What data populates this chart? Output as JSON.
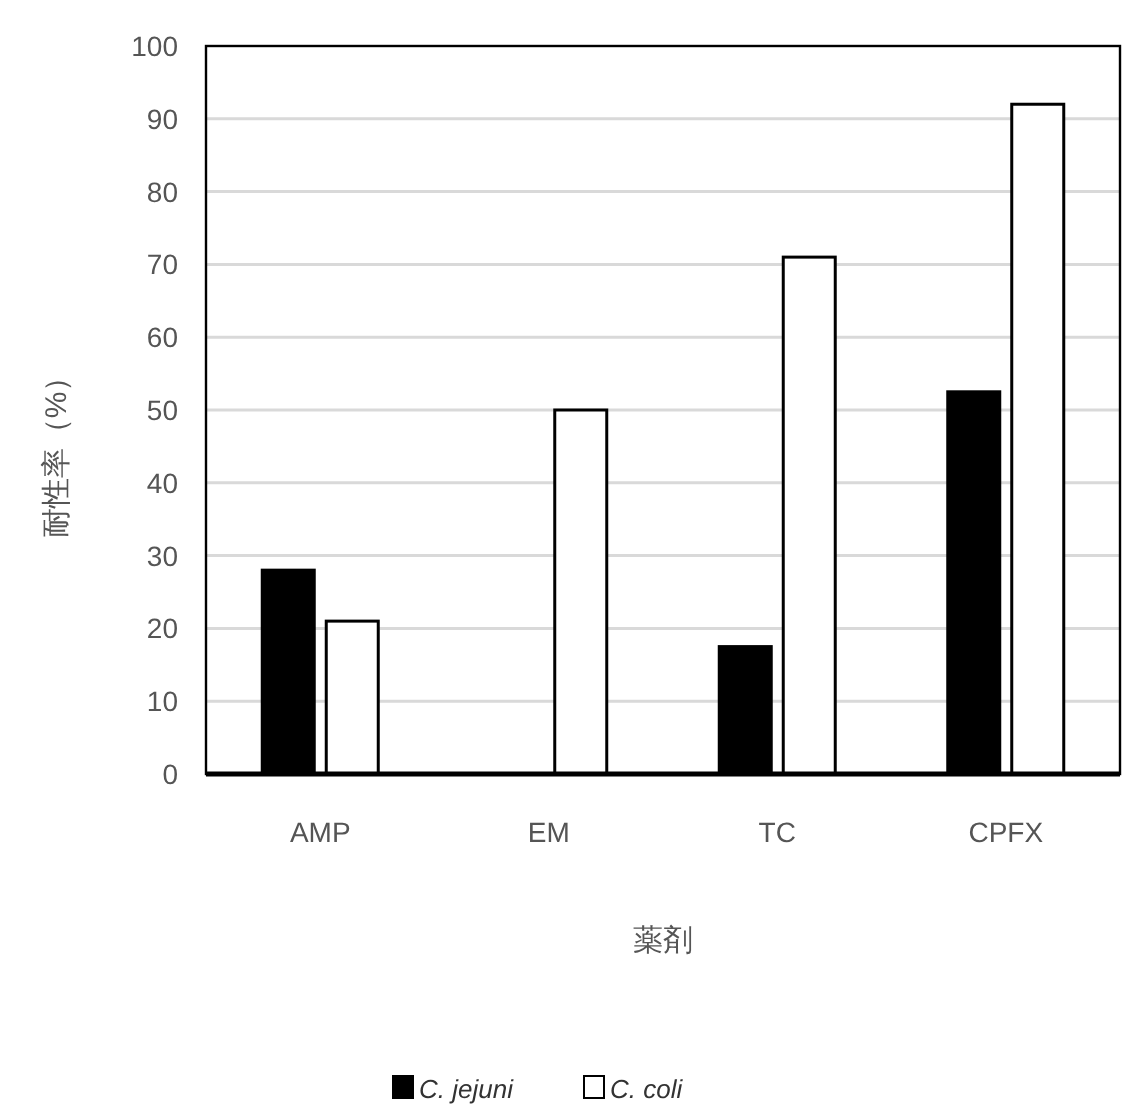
{
  "chart_data": {
    "type": "bar",
    "xlabel": "薬剤",
    "ylabel": "耐性率（%）",
    "categories": [
      "AMP",
      "EM",
      "TC",
      "CPFX"
    ],
    "series": [
      {
        "name": "C. jejuni",
        "color": "#000000",
        "values": [
          28,
          0,
          17.5,
          52.5
        ]
      },
      {
        "name": "C. coli",
        "color": "#ffffff",
        "values": [
          21,
          50,
          71,
          92
        ]
      }
    ],
    "ylim": [
      0,
      100
    ],
    "yticks": [
      0,
      10,
      20,
      30,
      40,
      50,
      60,
      70,
      80,
      90,
      100
    ],
    "grid": "y",
    "legend": "bottom"
  }
}
